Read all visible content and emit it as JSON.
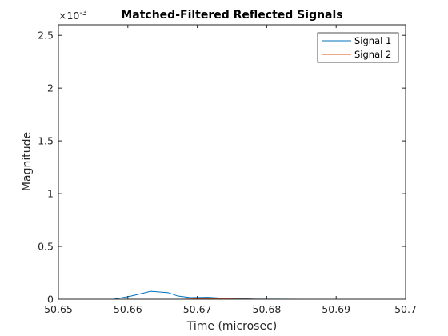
{
  "chart_data": {
    "type": "line",
    "title": "Matched-Filtered Reflected Signals",
    "xlabel": "Time (microsec)",
    "ylabel": "Magnitude",
    "xlim": [
      50.65,
      50.7
    ],
    "ylim": [
      0,
      0.0026
    ],
    "x_ticks": [
      50.65,
      50.66,
      50.67,
      50.68,
      50.69,
      50.7
    ],
    "x_tick_labels": [
      "50.65",
      "50.66",
      "50.67",
      "50.68",
      "50.69",
      "50.7"
    ],
    "y_ticks": [
      0,
      0.0005,
      0.001,
      0.0015,
      0.002,
      0.0025
    ],
    "y_tick_labels": [
      "0",
      "0.5",
      "1",
      "1.5",
      "2",
      "2.5"
    ],
    "y_exponent_base": "×10",
    "y_exponent_power": "-3",
    "grid": false,
    "legend_position": "top-right",
    "series": [
      {
        "name": "Signal 1",
        "color": "#0072BD",
        "x": [
          50.65,
          50.658,
          50.6605,
          50.6633,
          50.6658,
          50.6672,
          50.669,
          50.6715,
          50.673,
          50.675,
          50.678,
          50.685,
          50.7
        ],
        "y": [
          0,
          0,
          3e-05,
          7.5e-05,
          6.2e-05,
          3e-05,
          1.5e-05,
          1.8e-05,
          1.2e-05,
          8e-06,
          2e-06,
          0,
          0
        ]
      },
      {
        "name": "Signal 2",
        "color": "#D95319",
        "x": [
          50.65,
          50.668,
          50.67,
          50.672,
          50.674,
          50.676,
          50.68,
          50.7
        ],
        "y": [
          0,
          0,
          6e-06,
          5e-06,
          4e-06,
          2e-06,
          0,
          0
        ]
      }
    ]
  }
}
